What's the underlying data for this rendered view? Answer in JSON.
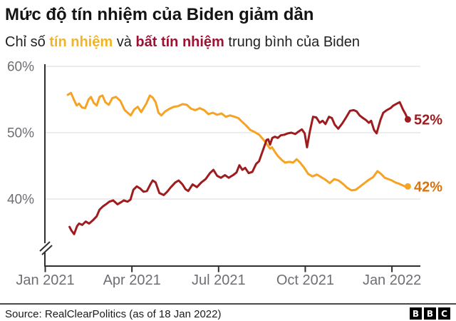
{
  "header": {
    "title": "Mức độ tín nhiệm của Biden giảm dần",
    "subtitle_prefix": "Chỉ số ",
    "subtitle_keyword_approve": "tín nhiệm",
    "subtitle_middle": " và ",
    "subtitle_keyword_disapprove": "bất tín nhiệm",
    "subtitle_suffix": " trung bình của Biden"
  },
  "chart_data": {
    "type": "line",
    "title": "Mức độ tín nhiệm của Biden giảm dần",
    "x_unit": "months since Jan 2021",
    "xlim": [
      0,
      13.0
    ],
    "ylim_visible": [
      34,
      60
    ],
    "grid": "horizontal",
    "y_axis_break": true,
    "x_ticks": [
      {
        "pos": 0,
        "label": "Jan 2021"
      },
      {
        "pos": 3,
        "label": "Apr 2021"
      },
      {
        "pos": 6,
        "label": "Jul 2021"
      },
      {
        "pos": 9,
        "label": "Oct 2021"
      },
      {
        "pos": 12,
        "label": "Jan 2022"
      }
    ],
    "y_ticks": [
      {
        "value": 60,
        "label": "60%"
      },
      {
        "value": 50,
        "label": "50%"
      },
      {
        "value": 40,
        "label": "40%"
      }
    ],
    "series": [
      {
        "id": "approval",
        "name": "tín nhiệm",
        "color": "#F6A323",
        "end_label": "42%",
        "end_label_color": "#D9730B",
        "end_value": 42,
        "points": [
          [
            0.78,
            55.7
          ],
          [
            0.89,
            56.0
          ],
          [
            1.0,
            54.9
          ],
          [
            1.09,
            54.1
          ],
          [
            1.17,
            54.4
          ],
          [
            1.27,
            53.8
          ],
          [
            1.38,
            53.7
          ],
          [
            1.5,
            55.0
          ],
          [
            1.58,
            55.4
          ],
          [
            1.68,
            54.5
          ],
          [
            1.78,
            54.1
          ],
          [
            1.88,
            55.4
          ],
          [
            1.98,
            55.6
          ],
          [
            2.08,
            54.6
          ],
          [
            2.2,
            54.2
          ],
          [
            2.32,
            55.2
          ],
          [
            2.45,
            55.4
          ],
          [
            2.6,
            54.8
          ],
          [
            2.75,
            53.4
          ],
          [
            2.88,
            52.9
          ],
          [
            2.96,
            52.6
          ],
          [
            3.08,
            53.5
          ],
          [
            3.2,
            53.9
          ],
          [
            3.32,
            53.1
          ],
          [
            3.5,
            54.4
          ],
          [
            3.62,
            55.6
          ],
          [
            3.72,
            55.3
          ],
          [
            3.82,
            54.6
          ],
          [
            3.92,
            53.0
          ],
          [
            4.02,
            52.6
          ],
          [
            4.15,
            53.2
          ],
          [
            4.3,
            53.6
          ],
          [
            4.45,
            53.9
          ],
          [
            4.6,
            54.0
          ],
          [
            4.75,
            54.3
          ],
          [
            4.9,
            54.2
          ],
          [
            5.05,
            53.6
          ],
          [
            5.2,
            53.4
          ],
          [
            5.35,
            53.7
          ],
          [
            5.5,
            53.4
          ],
          [
            5.65,
            52.8
          ],
          [
            5.8,
            53.0
          ],
          [
            5.95,
            52.7
          ],
          [
            6.1,
            52.9
          ],
          [
            6.25,
            52.4
          ],
          [
            6.4,
            52.6
          ],
          [
            6.55,
            52.4
          ],
          [
            6.68,
            52.2
          ],
          [
            6.8,
            51.7
          ],
          [
            6.95,
            51.1
          ],
          [
            7.1,
            50.4
          ],
          [
            7.25,
            50.1
          ],
          [
            7.4,
            49.7
          ],
          [
            7.5,
            49.2
          ],
          [
            7.6,
            48.7
          ],
          [
            7.7,
            48.1
          ],
          [
            7.78,
            47.6
          ],
          [
            7.85,
            47.8
          ],
          [
            7.95,
            47.1
          ],
          [
            8.05,
            46.5
          ],
          [
            8.18,
            45.9
          ],
          [
            8.3,
            45.5
          ],
          [
            8.45,
            45.6
          ],
          [
            8.58,
            45.5
          ],
          [
            8.7,
            46.0
          ],
          [
            8.82,
            45.5
          ],
          [
            8.95,
            44.8
          ],
          [
            9.1,
            43.8
          ],
          [
            9.25,
            43.4
          ],
          [
            9.4,
            43.7
          ],
          [
            9.55,
            43.3
          ],
          [
            9.7,
            42.9
          ],
          [
            9.85,
            42.4
          ],
          [
            10.0,
            43.0
          ],
          [
            10.15,
            42.8
          ],
          [
            10.3,
            42.3
          ],
          [
            10.45,
            41.7
          ],
          [
            10.6,
            41.3
          ],
          [
            10.75,
            41.4
          ],
          [
            10.9,
            41.9
          ],
          [
            11.05,
            42.4
          ],
          [
            11.2,
            42.9
          ],
          [
            11.35,
            43.3
          ],
          [
            11.5,
            44.2
          ],
          [
            11.62,
            43.8
          ],
          [
            11.75,
            43.2
          ],
          [
            11.88,
            43.0
          ],
          [
            12.0,
            42.8
          ],
          [
            12.12,
            42.5
          ],
          [
            12.25,
            42.3
          ],
          [
            12.35,
            42.1
          ],
          [
            12.45,
            41.9
          ],
          [
            12.55,
            41.9
          ]
        ]
      },
      {
        "id": "disapproval",
        "name": "bất tín nhiệm",
        "color": "#9E1B1E",
        "end_label": "52%",
        "end_label_color": "#9E1B1E",
        "end_value": 52,
        "points": [
          [
            0.84,
            35.8
          ],
          [
            0.9,
            35.3
          ],
          [
            1.0,
            34.7
          ],
          [
            1.1,
            35.9
          ],
          [
            1.17,
            36.3
          ],
          [
            1.28,
            36.1
          ],
          [
            1.4,
            36.6
          ],
          [
            1.52,
            36.3
          ],
          [
            1.65,
            36.8
          ],
          [
            1.78,
            37.4
          ],
          [
            1.88,
            38.4
          ],
          [
            2.0,
            38.9
          ],
          [
            2.1,
            39.2
          ],
          [
            2.22,
            39.6
          ],
          [
            2.35,
            39.8
          ],
          [
            2.5,
            39.2
          ],
          [
            2.62,
            39.5
          ],
          [
            2.72,
            39.8
          ],
          [
            2.85,
            39.6
          ],
          [
            2.95,
            39.9
          ],
          [
            3.05,
            41.4
          ],
          [
            3.17,
            41.9
          ],
          [
            3.28,
            41.6
          ],
          [
            3.4,
            41.1
          ],
          [
            3.52,
            41.2
          ],
          [
            3.65,
            42.3
          ],
          [
            3.72,
            42.8
          ],
          [
            3.82,
            42.5
          ],
          [
            3.95,
            40.9
          ],
          [
            4.1,
            40.6
          ],
          [
            4.22,
            41.1
          ],
          [
            4.35,
            41.8
          ],
          [
            4.5,
            42.5
          ],
          [
            4.62,
            42.8
          ],
          [
            4.75,
            42.2
          ],
          [
            4.85,
            41.5
          ],
          [
            4.95,
            41.2
          ],
          [
            5.1,
            42.2
          ],
          [
            5.25,
            41.8
          ],
          [
            5.4,
            42.5
          ],
          [
            5.55,
            43.0
          ],
          [
            5.7,
            43.9
          ],
          [
            5.82,
            44.4
          ],
          [
            5.95,
            43.5
          ],
          [
            6.08,
            43.2
          ],
          [
            6.22,
            43.6
          ],
          [
            6.35,
            43.2
          ],
          [
            6.5,
            43.6
          ],
          [
            6.62,
            44.0
          ],
          [
            6.72,
            45.1
          ],
          [
            6.82,
            44.4
          ],
          [
            6.92,
            44.7
          ],
          [
            7.04,
            43.9
          ],
          [
            7.17,
            44.1
          ],
          [
            7.3,
            45.3
          ],
          [
            7.4,
            45.7
          ],
          [
            7.5,
            46.9
          ],
          [
            7.58,
            47.9
          ],
          [
            7.66,
            48.9
          ],
          [
            7.72,
            49.0
          ],
          [
            7.78,
            48.2
          ],
          [
            7.86,
            49.2
          ],
          [
            7.95,
            49.4
          ],
          [
            8.05,
            49.2
          ],
          [
            8.15,
            49.6
          ],
          [
            8.28,
            49.7
          ],
          [
            8.4,
            49.9
          ],
          [
            8.52,
            50.0
          ],
          [
            8.65,
            49.8
          ],
          [
            8.78,
            50.2
          ],
          [
            8.88,
            50.5
          ],
          [
            8.98,
            49.9
          ],
          [
            9.06,
            47.8
          ],
          [
            9.16,
            50.2
          ],
          [
            9.27,
            52.4
          ],
          [
            9.38,
            52.3
          ],
          [
            9.5,
            51.5
          ],
          [
            9.6,
            51.8
          ],
          [
            9.7,
            51.3
          ],
          [
            9.82,
            52.4
          ],
          [
            9.92,
            52.2
          ],
          [
            10.02,
            51.2
          ],
          [
            10.14,
            50.6
          ],
          [
            10.28,
            51.4
          ],
          [
            10.4,
            52.2
          ],
          [
            10.55,
            53.3
          ],
          [
            10.68,
            53.4
          ],
          [
            10.78,
            53.2
          ],
          [
            10.88,
            52.6
          ],
          [
            11.0,
            52.2
          ],
          [
            11.1,
            51.9
          ],
          [
            11.2,
            51.5
          ],
          [
            11.28,
            51.8
          ],
          [
            11.38,
            50.4
          ],
          [
            11.47,
            49.9
          ],
          [
            11.6,
            51.9
          ],
          [
            11.7,
            53.0
          ],
          [
            11.82,
            53.4
          ],
          [
            11.95,
            53.7
          ],
          [
            12.05,
            54.1
          ],
          [
            12.18,
            54.4
          ],
          [
            12.27,
            54.6
          ],
          [
            12.38,
            53.5
          ],
          [
            12.47,
            52.8
          ],
          [
            12.55,
            52.0
          ]
        ]
      }
    ]
  },
  "footer": {
    "source": "Source: RealClearPolitics (as of 18 Jan 2022)",
    "logo_letters": [
      "B",
      "B",
      "C"
    ]
  },
  "colors": {
    "approval_line": "#F6A323",
    "disapproval_line": "#9E1B1E",
    "approval_text": "#F0B429",
    "disapproval_text": "#9B1332",
    "approval_end_label": "#D9730B",
    "axis": "#2F2F2F",
    "gridline": "#D8D8D8",
    "axis_label": "#6E6E73"
  }
}
